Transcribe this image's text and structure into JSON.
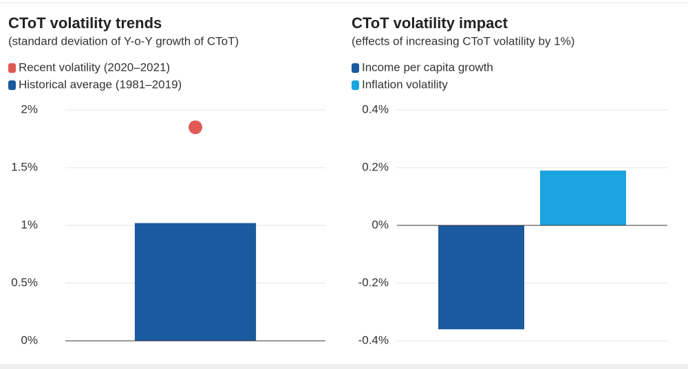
{
  "chart_data": [
    {
      "type": "bar",
      "title": "CToT volatility trends",
      "subtitle": "(standard deviation of Y-o-Y growth of CToT)",
      "categories": [
        null
      ],
      "series": [
        {
          "name": "Recent volatility (2020–2021)",
          "color": "#e05a55",
          "marker": "dot",
          "values": [
            1.85
          ]
        },
        {
          "name": "Historical average (1981–2019)",
          "color": "#1a5a9e",
          "marker": "bar",
          "values": [
            1.02
          ]
        }
      ],
      "ylim": [
        0,
        2
      ],
      "yticks": [
        {
          "value": 0,
          "label": "0%"
        },
        {
          "value": 0.5,
          "label": "0.5%"
        },
        {
          "value": 1,
          "label": "1%"
        },
        {
          "value": 1.5,
          "label": "1.5%"
        },
        {
          "value": 2,
          "label": "2%"
        }
      ],
      "grid": true
    },
    {
      "type": "bar",
      "title": "CToT volatility impact",
      "subtitle": "(effects of increasing CToT volatility by 1%)",
      "categories": [
        null
      ],
      "series": [
        {
          "name": "Income per capita growth",
          "color": "#1a5a9e",
          "marker": "bar",
          "values": [
            -0.36
          ]
        },
        {
          "name": "Inflation volatility",
          "color": "#1ba3e0",
          "marker": "bar",
          "values": [
            0.19
          ]
        }
      ],
      "ylim": [
        -0.4,
        0.4
      ],
      "yticks": [
        {
          "value": -0.4,
          "label": "-0.4%"
        },
        {
          "value": -0.2,
          "label": "-0.2%"
        },
        {
          "value": 0,
          "label": "0%"
        },
        {
          "value": 0.2,
          "label": "0.2%"
        },
        {
          "value": 0.4,
          "label": "0.4%"
        }
      ],
      "grid": true
    }
  ]
}
